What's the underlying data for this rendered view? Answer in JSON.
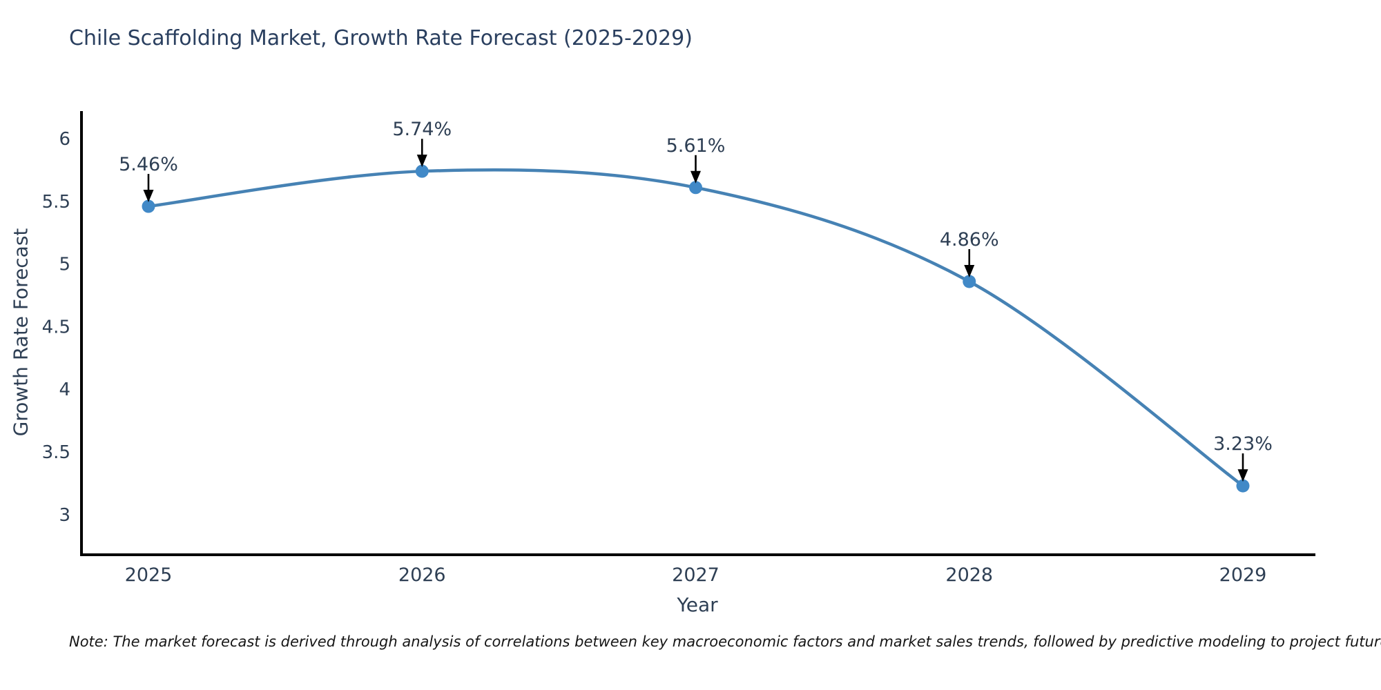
{
  "title": "Chile Scaffolding Market, Growth Rate Forecast (2025-2029)",
  "note": "Note: The market forecast is derived through analysis of correlations between key macroeconomic factors and market sales trends, followed by predictive modeling to project future sales",
  "chart_data": {
    "type": "line",
    "title": "Chile Scaffolding Market, Growth Rate Forecast (2025-2029)",
    "xlabel": "Year",
    "ylabel": "Growth Rate Forecast",
    "x": [
      2025,
      2026,
      2027,
      2028,
      2029
    ],
    "values": [
      5.46,
      5.74,
      5.61,
      4.86,
      3.23
    ],
    "point_labels": [
      "5.46%",
      "5.74%",
      "5.61%",
      "4.86%",
      "3.23%"
    ],
    "xticks": [
      2025,
      2026,
      2027,
      2028,
      2029
    ],
    "yticks": [
      3,
      3.5,
      4,
      4.5,
      5,
      5.5,
      6
    ],
    "ylim": [
      2.68,
      6.22
    ],
    "grid": false,
    "legend": null,
    "line_color": "#4682b4",
    "marker_color": "#4189c7",
    "axis_color": "#000000",
    "annotation_arrow_color": "#000000",
    "text_color": "#2e3f54"
  }
}
